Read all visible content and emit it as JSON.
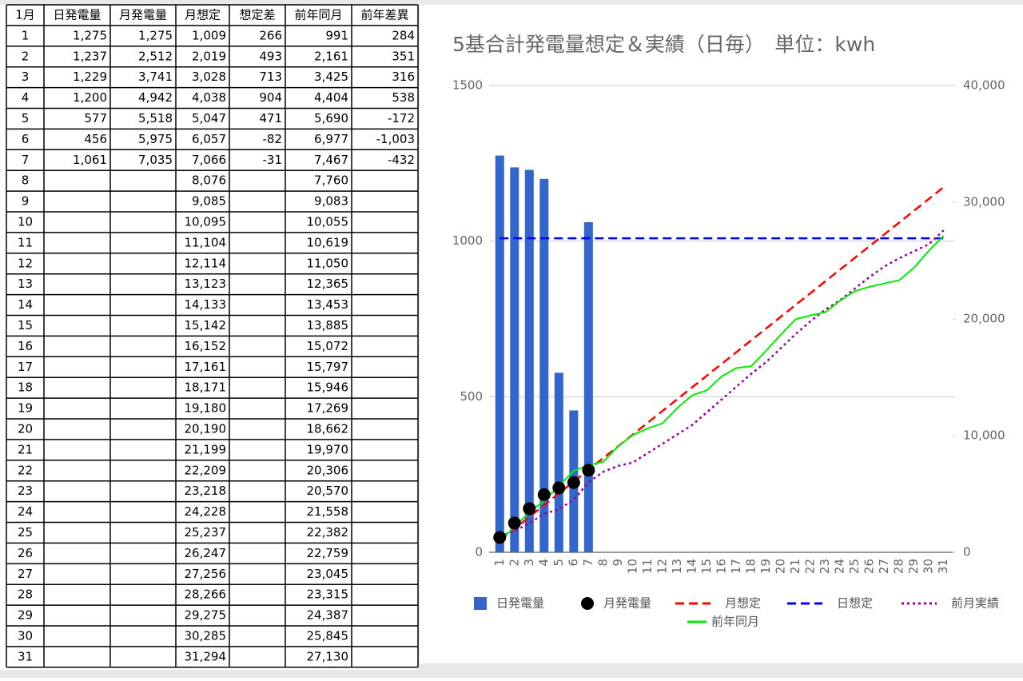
{
  "table": {
    "header": [
      "1月",
      "日発電量",
      "月発電量",
      "月想定",
      "想定差",
      "前年同月",
      "前年差異"
    ],
    "rows": [
      [
        "1",
        "1,275",
        "1,275",
        "1,009",
        "266",
        "991",
        "284"
      ],
      [
        "2",
        "1,237",
        "2,512",
        "2,019",
        "493",
        "2,161",
        "351"
      ],
      [
        "3",
        "1,229",
        "3,741",
        "3,028",
        "713",
        "3,425",
        "316"
      ],
      [
        "4",
        "1,200",
        "4,942",
        "4,038",
        "904",
        "4,404",
        "538"
      ],
      [
        "5",
        "577",
        "5,518",
        "5,047",
        "471",
        "5,690",
        "-172"
      ],
      [
        "6",
        "456",
        "5,975",
        "6,057",
        "-82",
        "6,977",
        "-1,003"
      ],
      [
        "7",
        "1,061",
        "7,035",
        "7,066",
        "-31",
        "7,467",
        "-432"
      ],
      [
        "8",
        null,
        null,
        "8,076",
        null,
        "7,760",
        null
      ],
      [
        "9",
        null,
        null,
        "9,085",
        null,
        "9,083",
        null
      ],
      [
        "10",
        null,
        null,
        "10,095",
        null,
        "10,055",
        null
      ],
      [
        "11",
        null,
        null,
        "11,104",
        null,
        "10,619",
        null
      ],
      [
        "12",
        null,
        null,
        "12,114",
        null,
        "11,050",
        null
      ],
      [
        "13",
        null,
        null,
        "13,123",
        null,
        "12,365",
        null
      ],
      [
        "14",
        null,
        null,
        "14,133",
        null,
        "13,453",
        null
      ],
      [
        "15",
        null,
        null,
        "15,142",
        null,
        "13,885",
        null
      ],
      [
        "16",
        null,
        null,
        "16,152",
        null,
        "15,072",
        null
      ],
      [
        "17",
        null,
        null,
        "17,161",
        null,
        "15,797",
        null
      ],
      [
        "18",
        null,
        null,
        "18,171",
        null,
        "15,946",
        null
      ],
      [
        "19",
        null,
        null,
        "19,180",
        null,
        "17,269",
        null
      ],
      [
        "20",
        null,
        null,
        "20,190",
        null,
        "18,662",
        null
      ],
      [
        "21",
        null,
        null,
        "21,199",
        null,
        "19,970",
        null
      ],
      [
        "22",
        null,
        null,
        "22,209",
        null,
        "20,306",
        null
      ],
      [
        "23",
        null,
        null,
        "23,218",
        null,
        "20,570",
        null
      ],
      [
        "24",
        null,
        null,
        "24,228",
        null,
        "21,558",
        null
      ],
      [
        "25",
        null,
        null,
        "25,237",
        null,
        "22,382",
        null
      ],
      [
        "26",
        null,
        null,
        "26,247",
        null,
        "22,759",
        null
      ],
      [
        "27",
        null,
        null,
        "27,256",
        null,
        "23,045",
        null
      ],
      [
        "28",
        null,
        null,
        "28,266",
        null,
        "23,315",
        null
      ],
      [
        "29",
        null,
        null,
        "29,275",
        null,
        "24,387",
        null
      ],
      [
        "30",
        null,
        null,
        "30,285",
        null,
        "25,845",
        null
      ],
      [
        "31",
        null,
        null,
        "31,294",
        null,
        "27,130",
        null
      ]
    ],
    "colored_columns": [
      4,
      6
    ],
    "positive_color": "#ff0000",
    "negative_color": "#0000ff"
  },
  "chart_data": {
    "type": "combo",
    "title": "5基合計発電量想定＆実績（日毎）　単位：kwh",
    "categories": [
      "1",
      "2",
      "3",
      "4",
      "5",
      "6",
      "7",
      "8",
      "9",
      "10",
      "11",
      "12",
      "13",
      "14",
      "15",
      "16",
      "17",
      "18",
      "19",
      "20",
      "21",
      "22",
      "23",
      "24",
      "25",
      "26",
      "27",
      "28",
      "29",
      "30",
      "31"
    ],
    "ylim": [
      0,
      1500
    ],
    "yticks": [
      0,
      500,
      1000,
      1500
    ],
    "y2lim": [
      0,
      40000
    ],
    "y2ticks": [
      0,
      {
        "value": 10000,
        "label": "10,000"
      },
      {
        "value": 20000,
        "label": "20,000"
      },
      {
        "value": 30000,
        "label": "30,000"
      },
      {
        "value": 40000,
        "label": "40,000"
      }
    ],
    "grid": true,
    "legend": "bottom",
    "series": [
      {
        "name": "日発電量",
        "kind": "bar",
        "color": "#3366cc",
        "values": [
          1275,
          1237,
          1229,
          1200,
          577,
          456,
          1061,
          null,
          null,
          null,
          null,
          null,
          null,
          null,
          null,
          null,
          null,
          null,
          null,
          null,
          null,
          null,
          null,
          null,
          null,
          null,
          null,
          null,
          null,
          null,
          null
        ]
      },
      {
        "name": "月発電量",
        "kind": "points",
        "axis": "y2",
        "color": "#000000",
        "values": [
          1275,
          2512,
          3741,
          4942,
          5518,
          5975,
          7035,
          null,
          null,
          null,
          null,
          null,
          null,
          null,
          null,
          null,
          null,
          null,
          null,
          null,
          null,
          null,
          null,
          null,
          null,
          null,
          null,
          null,
          null,
          null,
          null
        ]
      },
      {
        "name": "月想定",
        "kind": "dashed",
        "axis": "y2",
        "color": "#ff0000",
        "values": [
          1009,
          2019,
          3028,
          4038,
          5047,
          6057,
          7066,
          8076,
          9085,
          10095,
          11104,
          12114,
          13123,
          14133,
          15142,
          16152,
          17161,
          18171,
          19180,
          20190,
          21199,
          22209,
          23218,
          24228,
          25237,
          26247,
          27256,
          28266,
          29275,
          30285,
          31294
        ]
      },
      {
        "name": "日想定",
        "kind": "dashed",
        "color": "#0000ff",
        "values": [
          1009,
          1009,
          1009,
          1009,
          1009,
          1009,
          1009,
          1009,
          1009,
          1009,
          1009,
          1009,
          1009,
          1009,
          1009,
          1009,
          1009,
          1009,
          1009,
          1009,
          1009,
          1009,
          1009,
          1009,
          1009,
          1009,
          1009,
          1009,
          1009,
          1009,
          1009
        ]
      },
      {
        "name": "前月実績",
        "kind": "dotted",
        "axis": "y2",
        "color": "#990099",
        "values": [
          1400,
          1800,
          2500,
          3300,
          3700,
          4500,
          6000,
          6900,
          7400,
          7700,
          8500,
          9300,
          10100,
          10900,
          12000,
          13100,
          14200,
          15300,
          16300,
          17500,
          18700,
          19800,
          20800,
          21600,
          22600,
          23600,
          24500,
          25200,
          25800,
          26400,
          27600
        ]
      },
      {
        "name": "前年同月",
        "kind": "solid",
        "axis": "y2",
        "color": "#00ee00",
        "values": [
          991,
          2161,
          3425,
          4404,
          5690,
          6977,
          7467,
          7760,
          9083,
          10055,
          10619,
          11050,
          12365,
          13453,
          13885,
          15072,
          15797,
          15946,
          17269,
          18662,
          19970,
          20306,
          20570,
          21558,
          22382,
          22759,
          23045,
          23315,
          24387,
          25845,
          27130
        ]
      }
    ]
  }
}
